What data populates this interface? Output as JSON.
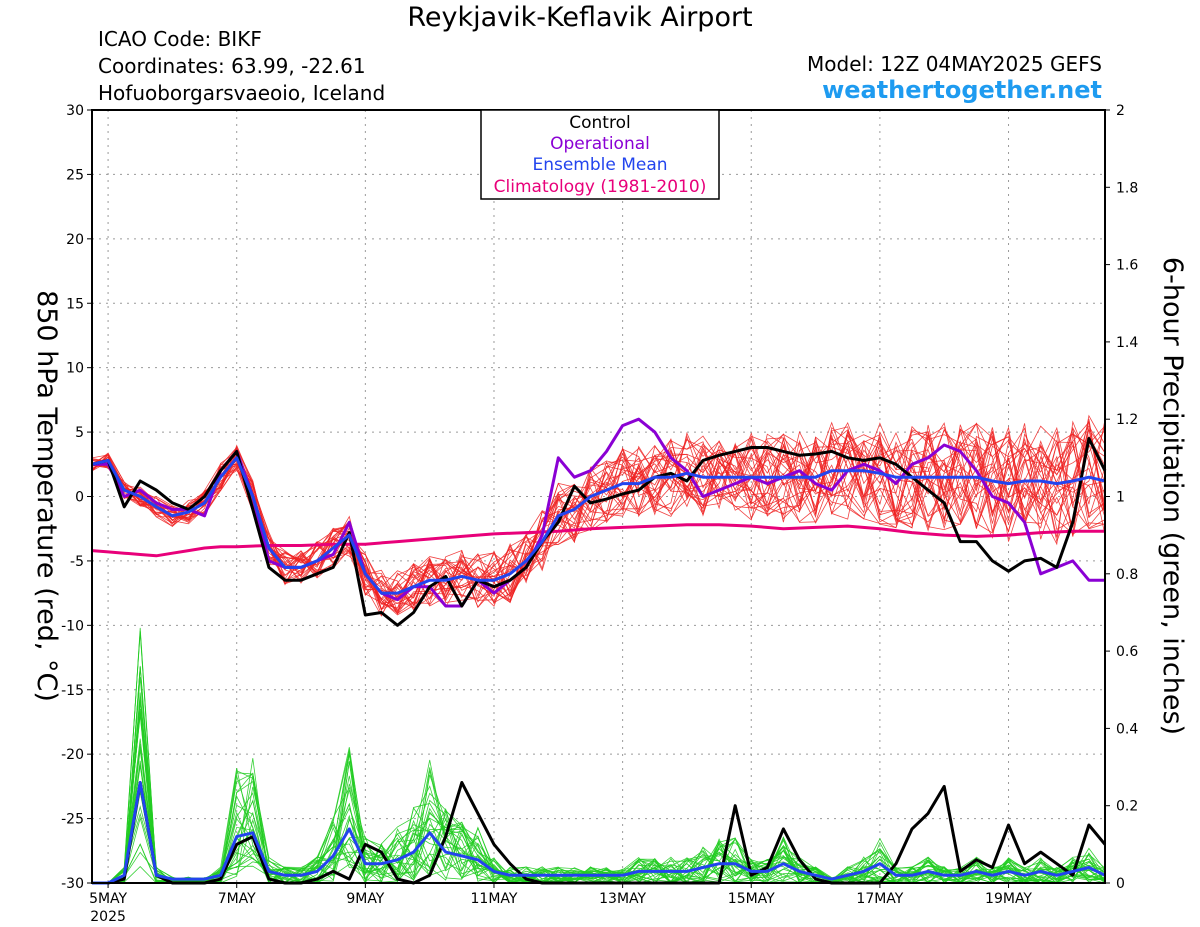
{
  "header": {
    "title": "Reykjavik-Keflavik Airport",
    "icao": "ICAO Code: BIKF",
    "coordinates": "Coordinates: 63.99, -22.61",
    "region": "Hofuoborgarsvaeoio, Iceland",
    "model": "Model: 12Z 04MAY2025 GEFS",
    "site": "weathertogether.net"
  },
  "colors": {
    "control": "#000000",
    "operational": "#8a00d4",
    "ensemble_mean": "#2244ee",
    "climatology": "#e8007a",
    "temp_members": "#ee2222",
    "precip_members": "#22cc22",
    "site": "#1e9bf0"
  },
  "chart_data": {
    "type": "line",
    "ylabel_left": "850 hPa Temperature (red, °C)",
    "ylabel_right": "6-hour Precipitation (green, inches)",
    "ylim_left": [
      -30,
      30
    ],
    "ylim_right": [
      0,
      2
    ],
    "yticks_left": [
      "30",
      "25",
      "20",
      "15",
      "10",
      "5",
      "0",
      "-5",
      "-10",
      "-15",
      "-20",
      "-25",
      "-30"
    ],
    "yticks_right": [
      "2",
      "1.8",
      "1.6",
      "1.4",
      "1.2",
      "1",
      "0.8",
      "0.6",
      "0.4",
      "0.2",
      "0"
    ],
    "xlim_days": [
      4.75,
      20.5
    ],
    "xtick_days": [
      5,
      7,
      9,
      11,
      13,
      15,
      17,
      19
    ],
    "xtick_labels": [
      "5MAY",
      "7MAY",
      "9MAY",
      "11MAY",
      "13MAY",
      "15MAY",
      "17MAY",
      "19MAY"
    ],
    "xyear_label": "2025",
    "grid": true,
    "legend": {
      "position": "top-center",
      "entries": [
        "Control",
        "Operational",
        "Ensemble Mean",
        "Climatology (1981-2010)"
      ]
    },
    "temperature_series": [
      {
        "name": "Control",
        "x": [
          4.75,
          5,
          5.25,
          5.5,
          5.75,
          6,
          6.25,
          6.5,
          6.75,
          7,
          7.25,
          7.5,
          7.75,
          8,
          8.25,
          8.5,
          8.75,
          9,
          9.25,
          9.5,
          9.75,
          10,
          10.25,
          10.5,
          10.75,
          11,
          11.25,
          11.5,
          11.75,
          12,
          12.25,
          12.5,
          12.75,
          13,
          13.25,
          13.5,
          13.75,
          14,
          14.25,
          14.5,
          14.75,
          15,
          15.25,
          15.5,
          15.75,
          16,
          16.25,
          16.5,
          16.75,
          17,
          17.25,
          17.5,
          17.75,
          18,
          18.25,
          18.5,
          18.75,
          19,
          19.25,
          19.5,
          19.75,
          20,
          20.25,
          20.5
        ],
        "y": [
          2.5,
          2.8,
          -0.8,
          1.2,
          0.5,
          -0.5,
          -1.0,
          0.0,
          2.0,
          3.5,
          -1.0,
          -5.5,
          -6.5,
          -6.5,
          -6.0,
          -5.5,
          -2.8,
          -9.2,
          -9.0,
          -10.0,
          -9.0,
          -7.0,
          -6.2,
          -8.5,
          -6.5,
          -7.0,
          -6.5,
          -5.5,
          -3.5,
          -2.0,
          0.8,
          -0.5,
          -0.2,
          0.2,
          0.5,
          1.5,
          1.8,
          1.2,
          2.8,
          3.2,
          3.5,
          3.8,
          3.8,
          3.5,
          3.2,
          3.3,
          3.5,
          3.0,
          2.8,
          3.0,
          2.5,
          1.5,
          0.5,
          -0.5,
          -3.5,
          -3.5,
          -5.0,
          -5.8,
          -5.0,
          -4.8,
          -5.5,
          -2.0,
          4.5,
          2.0
        ]
      },
      {
        "name": "Operational",
        "x": [
          4.75,
          5,
          5.25,
          5.5,
          5.75,
          6,
          6.25,
          6.5,
          6.75,
          7,
          7.25,
          7.5,
          7.75,
          8,
          8.25,
          8.5,
          8.75,
          9,
          9.25,
          9.5,
          9.75,
          10,
          10.25,
          10.5,
          10.75,
          11,
          11.25,
          11.5,
          11.75,
          12,
          12.25,
          12.5,
          12.75,
          13,
          13.25,
          13.5,
          13.75,
          14,
          14.25,
          14.5,
          14.75,
          15,
          15.25,
          15.5,
          15.75,
          16,
          16.25,
          16.5,
          16.75,
          17,
          17.25,
          17.5,
          17.75,
          18,
          18.25,
          18.5,
          18.75,
          19,
          19.25,
          19.5,
          19.75,
          20,
          20.25,
          20.5
        ],
        "y": [
          2.5,
          2.5,
          0.0,
          0.5,
          -0.5,
          -1.0,
          -1.0,
          -1.5,
          2.0,
          3.5,
          0.0,
          -5.0,
          -5.5,
          -5.5,
          -5.0,
          -4.5,
          -2.0,
          -6.0,
          -7.5,
          -8.0,
          -7.0,
          -7.0,
          -8.5,
          -8.5,
          -6.5,
          -7.5,
          -6.5,
          -5.5,
          -3.0,
          3.0,
          1.5,
          2.0,
          3.5,
          5.5,
          6.0,
          5.0,
          3.0,
          2.0,
          0.0,
          0.5,
          1.0,
          1.5,
          1.0,
          1.5,
          2.0,
          1.0,
          0.5,
          2.0,
          2.5,
          2.0,
          1.0,
          2.5,
          3.0,
          4.0,
          3.5,
          2.0,
          0.0,
          -0.5,
          -2.0,
          -6.0,
          -5.5,
          -5.0,
          -6.5,
          -6.5
        ]
      },
      {
        "name": "Ensemble Mean",
        "x": [
          4.75,
          5,
          5.25,
          5.5,
          5.75,
          6,
          6.25,
          6.5,
          6.75,
          7,
          7.25,
          7.5,
          7.75,
          8,
          8.25,
          8.5,
          8.75,
          9,
          9.25,
          9.5,
          9.75,
          10,
          10.25,
          10.5,
          10.75,
          11,
          11.25,
          11.5,
          11.75,
          12,
          12.25,
          12.5,
          12.75,
          13,
          13.25,
          13.5,
          13.75,
          14,
          14.25,
          14.5,
          14.75,
          15,
          15.25,
          15.5,
          15.75,
          16,
          16.25,
          16.5,
          16.75,
          17,
          17.25,
          17.5,
          17.75,
          18,
          18.25,
          18.5,
          18.75,
          19,
          19.25,
          19.5,
          19.75,
          20,
          20.25,
          20.5
        ],
        "y": [
          2.5,
          2.8,
          0.5,
          0.0,
          -0.8,
          -1.5,
          -1.2,
          -0.5,
          1.5,
          3.0,
          0.0,
          -4.0,
          -5.5,
          -5.5,
          -5.0,
          -4.0,
          -3.0,
          -6.0,
          -7.5,
          -7.5,
          -7.0,
          -6.5,
          -6.5,
          -6.2,
          -6.5,
          -6.5,
          -6.0,
          -5.0,
          -3.5,
          -1.5,
          -1.0,
          0.0,
          0.5,
          1.0,
          1.0,
          1.5,
          1.5,
          1.8,
          1.5,
          1.5,
          1.5,
          1.5,
          1.5,
          1.5,
          1.5,
          1.5,
          2.0,
          2.0,
          2.0,
          1.8,
          1.5,
          1.5,
          1.5,
          1.5,
          1.5,
          1.5,
          1.2,
          1.0,
          1.2,
          1.2,
          1.0,
          1.2,
          1.5,
          1.2
        ]
      },
      {
        "name": "Climatology (1981-2010)",
        "x": [
          4.75,
          5,
          5.25,
          5.5,
          5.75,
          6,
          6.25,
          6.5,
          6.75,
          7,
          7.5,
          8,
          8.5,
          9,
          9.5,
          10,
          10.5,
          11,
          11.5,
          12,
          12.5,
          13,
          13.5,
          14,
          14.5,
          15,
          15.5,
          16,
          16.5,
          17,
          17.5,
          18,
          18.5,
          19,
          19.5,
          20,
          20.5
        ],
        "y": [
          -4.2,
          -4.3,
          -4.4,
          -4.5,
          -4.6,
          -4.4,
          -4.2,
          -4.0,
          -3.9,
          -3.9,
          -3.8,
          -3.8,
          -3.7,
          -3.7,
          -3.5,
          -3.3,
          -3.1,
          -2.9,
          -2.8,
          -2.7,
          -2.5,
          -2.4,
          -2.3,
          -2.2,
          -2.2,
          -2.3,
          -2.5,
          -2.4,
          -2.3,
          -2.5,
          -2.8,
          -3.0,
          -3.1,
          -3.0,
          -2.8,
          -2.7,
          -2.7
        ]
      }
    ],
    "precipitation_series": [
      {
        "name": "Control",
        "x": [
          4.75,
          5,
          5.25,
          5.5,
          5.75,
          6,
          6.25,
          6.5,
          6.75,
          7,
          7.25,
          7.5,
          7.75,
          8,
          8.25,
          8.5,
          8.75,
          9,
          9.25,
          9.5,
          9.75,
          10,
          10.25,
          10.5,
          10.75,
          11,
          11.25,
          11.5,
          11.75,
          12,
          12.25,
          12.5,
          12.75,
          13,
          13.25,
          13.5,
          13.75,
          14,
          14.25,
          14.5,
          14.75,
          15,
          15.25,
          15.5,
          15.75,
          16,
          16.25,
          16.5,
          16.75,
          17,
          17.25,
          17.5,
          17.75,
          18,
          18.25,
          18.5,
          18.75,
          19,
          19.25,
          19.5,
          19.75,
          20,
          20.25,
          20.5
        ],
        "y": [
          0,
          0,
          0.01,
          0.26,
          0.02,
          0,
          0,
          0,
          0.01,
          0.1,
          0.12,
          0.01,
          0,
          0,
          0.01,
          0.03,
          0.01,
          0.1,
          0.08,
          0.01,
          0,
          0.02,
          0.12,
          0.26,
          0.18,
          0.1,
          0.05,
          0.01,
          0,
          0,
          0,
          0,
          0,
          0,
          0,
          0,
          0,
          0,
          0,
          0,
          0.2,
          0.02,
          0.04,
          0.14,
          0.06,
          0.01,
          0,
          0,
          0,
          0,
          0.05,
          0.14,
          0.18,
          0.25,
          0.03,
          0.06,
          0.04,
          0.15,
          0.05,
          0.08,
          0.05,
          0.02,
          0.15,
          0.1
        ]
      },
      {
        "name": "Ensemble Mean",
        "x": [
          4.75,
          5,
          5.25,
          5.5,
          5.75,
          6,
          6.25,
          6.5,
          6.75,
          7,
          7.25,
          7.5,
          7.75,
          8,
          8.25,
          8.5,
          8.75,
          9,
          9.25,
          9.5,
          9.75,
          10,
          10.25,
          10.5,
          10.75,
          11,
          11.25,
          11.5,
          11.75,
          12,
          12.25,
          12.5,
          12.75,
          13,
          13.25,
          13.5,
          13.75,
          14,
          14.25,
          14.5,
          14.75,
          15,
          15.25,
          15.5,
          15.75,
          16,
          16.25,
          16.5,
          16.75,
          17,
          17.25,
          17.5,
          17.75,
          18,
          18.25,
          18.5,
          18.75,
          19,
          19.25,
          19.5,
          19.75,
          20,
          20.25,
          20.5
        ],
        "y": [
          0,
          0,
          0.02,
          0.26,
          0.02,
          0.01,
          0.01,
          0.01,
          0.02,
          0.12,
          0.13,
          0.03,
          0.02,
          0.02,
          0.03,
          0.07,
          0.14,
          0.05,
          0.05,
          0.06,
          0.08,
          0.13,
          0.08,
          0.07,
          0.06,
          0.03,
          0.02,
          0.02,
          0.02,
          0.02,
          0.02,
          0.02,
          0.02,
          0.02,
          0.03,
          0.03,
          0.03,
          0.03,
          0.04,
          0.05,
          0.05,
          0.03,
          0.03,
          0.05,
          0.03,
          0.02,
          0.01,
          0.02,
          0.03,
          0.05,
          0.02,
          0.02,
          0.03,
          0.02,
          0.02,
          0.03,
          0.02,
          0.03,
          0.02,
          0.03,
          0.02,
          0.03,
          0.04,
          0.02
        ]
      }
    ],
    "ensemble_member_count": 30
  }
}
